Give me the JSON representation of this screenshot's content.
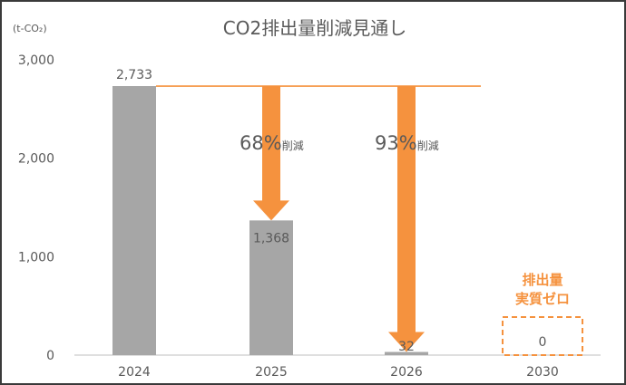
{
  "chart_data": {
    "type": "bar",
    "title": "CO2排出量削減見通し",
    "unit_label": "(t-CO₂)",
    "categories": [
      "2024",
      "2025",
      "2026",
      "2030"
    ],
    "values": [
      2733,
      1368,
      32,
      0
    ],
    "value_labels": [
      "2,733",
      "1,368",
      "32",
      "0"
    ],
    "ylim": [
      0,
      3000
    ],
    "yticks": [
      0,
      1000,
      2000,
      3000
    ],
    "ytick_labels": [
      "0",
      "1,000",
      "2,000",
      "3,000"
    ],
    "grid": false,
    "legend": "none",
    "colors": {
      "bar": "#a6a6a6",
      "accent": "#f5923e",
      "text": "#595959",
      "axis": "#bfbfbf"
    },
    "annotations": [
      {
        "from_category": "2025",
        "pct": "68%",
        "suffix": "削減"
      },
      {
        "from_category": "2026",
        "pct": "93%",
        "suffix": "削減"
      }
    ],
    "target_box": {
      "category": "2030",
      "line1": "排出量",
      "line2": "実質ゼロ",
      "value_label": "0"
    }
  }
}
